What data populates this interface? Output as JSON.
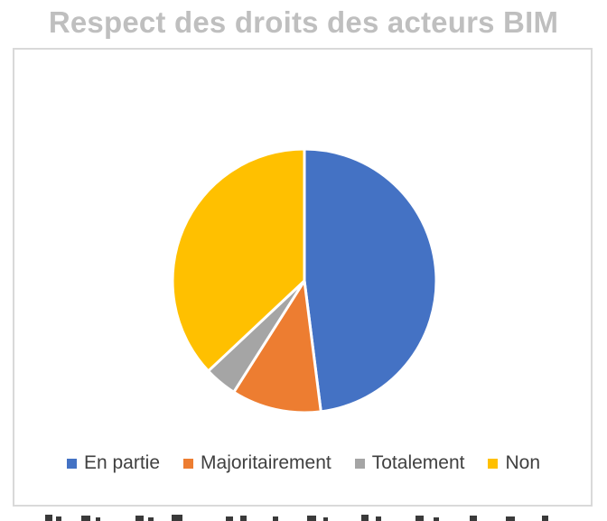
{
  "chart_data": {
    "type": "pie",
    "title": "Respect des droits des acteurs BIM",
    "categories": [
      "En partie",
      "Majoritairement",
      "Totalement",
      "Non"
    ],
    "values": [
      48,
      11,
      4,
      37
    ],
    "colors": [
      "#4472c4",
      "#ed7d31",
      "#a5a5a5",
      "#ffc000"
    ],
    "start_angle_deg": 0,
    "legend": "bottom",
    "data_labels": false
  }
}
